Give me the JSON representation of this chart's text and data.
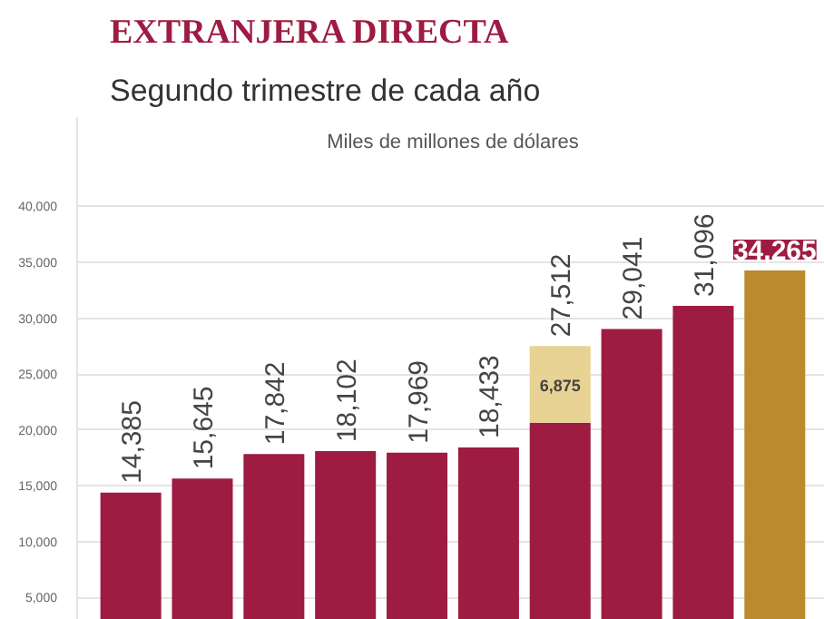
{
  "chart_data": {
    "type": "bar",
    "title": "EXTRANJERA DIRECTA",
    "subtitle": "Segundo trimestre de cada año",
    "ylabel": "Miles de millones de dólares",
    "categories": [
      null,
      null,
      null,
      null,
      null,
      null,
      null,
      null,
      null,
      null
    ],
    "stacked": true,
    "series": [
      {
        "colors": [
          "#9e1b42",
          "#9e1b42",
          "#9e1b42",
          "#9e1b42",
          "#9e1b42",
          "#9e1b42",
          "#9e1b42",
          "#9e1b42",
          "#9e1b42",
          "#bb8a2e"
        ],
        "values": [
          14385,
          15645,
          17842,
          18102,
          17969,
          18433,
          20637,
          29041,
          31096,
          34265
        ]
      },
      {
        "color": "#e8d294",
        "values": [
          null,
          null,
          null,
          null,
          null,
          null,
          6875,
          null,
          null,
          null
        ],
        "value_labels": [
          null,
          null,
          null,
          null,
          null,
          null,
          "6,875",
          null,
          null,
          null
        ]
      }
    ],
    "totals": [
      "14,385",
      "15,645",
      "17,842",
      "18,102",
      "17,969",
      "18,433",
      "27,512",
      "29,041",
      "31,096",
      "34,265"
    ],
    "ylim": [
      3000,
      48000
    ],
    "yticks": [
      {
        "value": 5000,
        "label": "5,000"
      },
      {
        "value": 10000,
        "label": "10,000"
      },
      {
        "value": 15000,
        "label": "15,000"
      },
      {
        "value": 20000,
        "label": "20,000"
      },
      {
        "value": 25000,
        "label": "25,000"
      },
      {
        "value": 30000,
        "label": "30,000"
      },
      {
        "value": 35000,
        "label": "35,000"
      },
      {
        "value": 40000,
        "label": "40,000"
      }
    ],
    "grid": "y",
    "tick_labels": "y"
  }
}
